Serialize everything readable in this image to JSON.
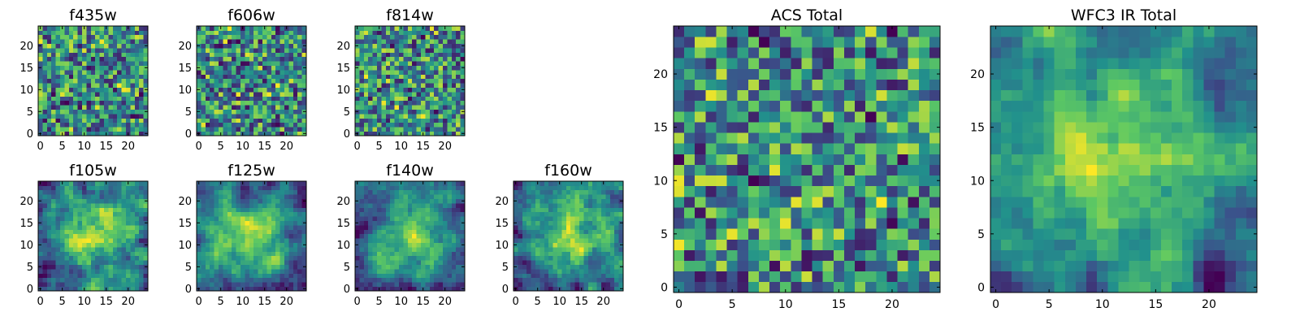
{
  "figure": {
    "cmap": [
      "#440154",
      "#3b528b",
      "#21918c",
      "#5ec962",
      "#fde725"
    ]
  },
  "chart_data": [
    {
      "type": "heatmap",
      "title": "f435w",
      "xticks": [
        "0",
        "5",
        "10",
        "15",
        "20"
      ],
      "yticks": [
        "0",
        "5",
        "10",
        "15",
        "20"
      ],
      "xlim": [
        0,
        24
      ],
      "ylim": [
        0,
        24
      ],
      "rows": 25,
      "cols": 25,
      "seed": 11,
      "style": "noise",
      "cmap": "viridis"
    },
    {
      "type": "heatmap",
      "title": "f606w",
      "xticks": [
        "0",
        "5",
        "10",
        "15",
        "20"
      ],
      "yticks": [
        "0",
        "5",
        "10",
        "15",
        "20"
      ],
      "xlim": [
        0,
        24
      ],
      "ylim": [
        0,
        24
      ],
      "rows": 25,
      "cols": 25,
      "seed": 23,
      "style": "noise",
      "cmap": "viridis"
    },
    {
      "type": "heatmap",
      "title": "f814w",
      "xticks": [
        "0",
        "5",
        "10",
        "15",
        "20"
      ],
      "yticks": [
        "0",
        "5",
        "10",
        "15",
        "20"
      ],
      "xlim": [
        0,
        24
      ],
      "ylim": [
        0,
        24
      ],
      "rows": 25,
      "cols": 25,
      "seed": 37,
      "style": "noise",
      "cmap": "viridis"
    },
    {
      "type": "heatmap",
      "title": "f105w",
      "xticks": [
        "0",
        "5",
        "10",
        "15",
        "20"
      ],
      "yticks": [
        "0",
        "5",
        "10",
        "15",
        "20"
      ],
      "xlim": [
        0,
        24
      ],
      "ylim": [
        0,
        24
      ],
      "rows": 25,
      "cols": 25,
      "seed": 41,
      "style": "smooth",
      "cmap": "viridis"
    },
    {
      "type": "heatmap",
      "title": "f125w",
      "xticks": [
        "0",
        "5",
        "10",
        "15",
        "20"
      ],
      "yticks": [
        "0",
        "5",
        "10",
        "15",
        "20"
      ],
      "xlim": [
        0,
        24
      ],
      "ylim": [
        0,
        24
      ],
      "rows": 25,
      "cols": 25,
      "seed": 53,
      "style": "smooth",
      "cmap": "viridis"
    },
    {
      "type": "heatmap",
      "title": "f140w",
      "xticks": [
        "0",
        "5",
        "10",
        "15",
        "20"
      ],
      "yticks": [
        "0",
        "5",
        "10",
        "15",
        "20"
      ],
      "xlim": [
        0,
        24
      ],
      "ylim": [
        0,
        24
      ],
      "rows": 25,
      "cols": 25,
      "seed": 67,
      "style": "smooth",
      "cmap": "viridis"
    },
    {
      "type": "heatmap",
      "title": "f160w",
      "xticks": [
        "0",
        "5",
        "10",
        "15",
        "20"
      ],
      "yticks": [
        "0",
        "5",
        "10",
        "15",
        "20"
      ],
      "xlim": [
        0,
        24
      ],
      "ylim": [
        0,
        24
      ],
      "rows": 25,
      "cols": 25,
      "seed": 79,
      "style": "smooth",
      "cmap": "viridis"
    },
    {
      "type": "heatmap",
      "title": "ACS Total",
      "xticks": [
        "0",
        "5",
        "10",
        "15",
        "20"
      ],
      "yticks": [
        "0",
        "5",
        "10",
        "15",
        "20"
      ],
      "xlim": [
        0,
        24
      ],
      "ylim": [
        0,
        24
      ],
      "rows": 25,
      "cols": 25,
      "seed": 97,
      "style": "noise",
      "cmap": "viridis"
    },
    {
      "type": "heatmap",
      "title": "WFC3 IR Total",
      "xticks": [
        "0",
        "5",
        "10",
        "15",
        "20"
      ],
      "yticks": [
        "0",
        "5",
        "10",
        "15",
        "20"
      ],
      "xlim": [
        0,
        24
      ],
      "ylim": [
        0,
        24
      ],
      "rows": 25,
      "cols": 25,
      "seed": 131,
      "style": "smooth",
      "cmap": "viridis"
    }
  ]
}
